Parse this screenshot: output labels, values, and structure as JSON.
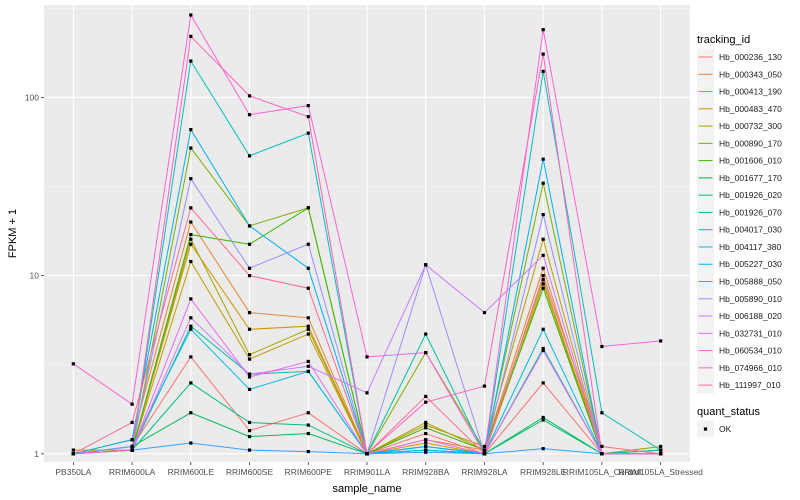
{
  "chart_data": {
    "type": "line",
    "xlabel": "sample_name",
    "ylabel": "FPKM + 1",
    "yscale": "log10",
    "ylim": [
      0.9,
      330
    ],
    "y_ticks": [
      1,
      10,
      100
    ],
    "y_tick_labels": [
      "1",
      "10",
      "100"
    ],
    "grid": true,
    "legend_position": "right",
    "categories": [
      "PB350LA",
      "RRIM600LA",
      "RRIM600LE",
      "RRIM600SE",
      "RRIM600PE",
      "RRIM901LA",
      "RRIM928BA",
      "RRIM928LA",
      "RRIM928LE",
      "RRIM105LA_Control",
      "RRIM105LA_Stressed"
    ],
    "legend_title": "tracking_id",
    "shape_legend_title": "quant_status",
    "shape_legend_entries": [
      "OK"
    ],
    "series": [
      {
        "name": "Hb_000236_130",
        "color": "#F8766D",
        "values": [
          1,
          1.1,
          3.5,
          1.35,
          1.7,
          1,
          1.3,
          1,
          2.5,
          1,
          1
        ]
      },
      {
        "name": "Hb_000343_050",
        "color": "#EA8331",
        "values": [
          1,
          1.2,
          20,
          6.2,
          5.8,
          1,
          1.2,
          1.05,
          11,
          1,
          1.05
        ]
      },
      {
        "name": "Hb_000413_190",
        "color": "#D89000",
        "values": [
          1,
          1.05,
          15,
          5,
          5.2,
          1,
          1.15,
          1,
          9,
          1,
          1
        ]
      },
      {
        "name": "Hb_000483_470",
        "color": "#C09B00",
        "values": [
          1.05,
          1.05,
          12,
          3.4,
          4.7,
          1,
          1.45,
          1.1,
          16,
          1,
          1.05
        ]
      },
      {
        "name": "Hb_000732_300",
        "color": "#A3A500",
        "values": [
          1,
          1.05,
          16,
          3.6,
          5,
          1,
          1.5,
          1.05,
          9.5,
          1,
          1.1
        ]
      },
      {
        "name": "Hb_000890_170",
        "color": "#7CAE00",
        "values": [
          1,
          1.05,
          52,
          19,
          24,
          1,
          3.7,
          1.05,
          33,
          1,
          1
        ]
      },
      {
        "name": "Hb_001606_010",
        "color": "#39B600",
        "values": [
          1,
          1.05,
          17,
          15,
          24,
          1,
          1.4,
          1.05,
          8.5,
          1,
          1
        ]
      },
      {
        "name": "Hb_001677_170",
        "color": "#00BB4E",
        "values": [
          1,
          1.1,
          1.7,
          1.25,
          1.3,
          1,
          1.05,
          1,
          1.6,
          1,
          1
        ]
      },
      {
        "name": "Hb_001926_020",
        "color": "#00BF7D",
        "values": [
          1,
          1.05,
          2.5,
          1.5,
          1.45,
          1,
          1.05,
          1,
          1.55,
          1,
          1
        ]
      },
      {
        "name": "Hb_001926_070",
        "color": "#00C1A3",
        "values": [
          1,
          1.05,
          5.2,
          2.8,
          2.9,
          1,
          4.7,
          1,
          3.9,
          1,
          1.05
        ]
      },
      {
        "name": "Hb_004017_030",
        "color": "#00BFC4",
        "values": [
          1,
          1.05,
          160,
          47,
          63,
          1,
          1.1,
          1,
          140,
          1.7,
          1.05
        ]
      },
      {
        "name": "Hb_004117_380",
        "color": "#00BAE0",
        "values": [
          1,
          1.1,
          5,
          2.3,
          2.9,
          1,
          1.05,
          1,
          5,
          1,
          1
        ]
      },
      {
        "name": "Hb_005227_030",
        "color": "#00B0F6",
        "values": [
          1,
          1.2,
          66,
          19,
          11,
          1,
          1.1,
          1,
          45,
          1,
          1
        ]
      },
      {
        "name": "Hb_005888_050",
        "color": "#35A2FF",
        "values": [
          1,
          1.05,
          1.15,
          1.05,
          1.03,
          1,
          1.02,
          1,
          1.07,
          1,
          1
        ]
      },
      {
        "name": "Hb_005890_010",
        "color": "#9590FF",
        "values": [
          1,
          1.1,
          35,
          11,
          15,
          1,
          11.5,
          1,
          22,
          1,
          1
        ]
      },
      {
        "name": "Hb_006188_020",
        "color": "#C77CFF",
        "values": [
          1,
          1.05,
          5.8,
          2.8,
          3.1,
          2.2,
          11.5,
          6.2,
          13,
          1,
          1
        ]
      },
      {
        "name": "Hb_032731_010",
        "color": "#E76BF3",
        "values": [
          1,
          1.05,
          7.4,
          2.7,
          3.3,
          1,
          1.2,
          1,
          3.8,
          1,
          1
        ]
      },
      {
        "name": "Hb_060534_010",
        "color": "#FA62DB",
        "values": [
          3.2,
          1.9,
          290,
          80,
          90,
          3.5,
          3.7,
          1,
          240,
          4,
          4.3
        ]
      },
      {
        "name": "Hb_074966_010",
        "color": "#FF62BC",
        "values": [
          1,
          1.05,
          220,
          102,
          78,
          1,
          1.95,
          2.4,
          175,
          1,
          1
        ]
      },
      {
        "name": "Hb_111997_010",
        "color": "#FF6C91",
        "values": [
          1,
          1.5,
          24,
          10,
          8.5,
          1,
          2.1,
          1,
          10,
          1.1,
          1
        ]
      }
    ]
  }
}
